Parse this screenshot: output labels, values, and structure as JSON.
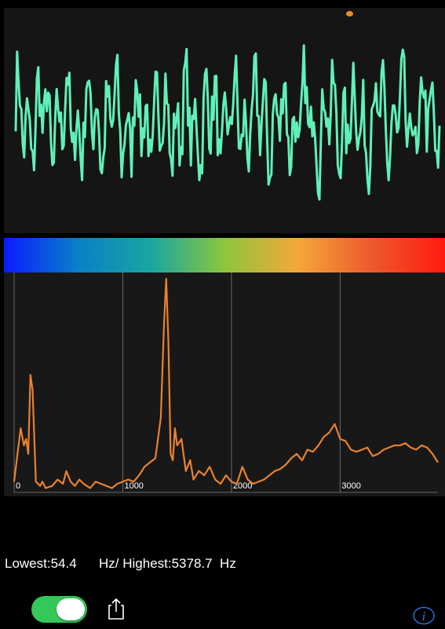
{
  "colors": {
    "waveform": "#5ff0b8",
    "spectrum": "#e8822e",
    "record_dot": "#f08a22",
    "toggle_on": "#34c759",
    "info": "#2a6fdb",
    "gradient": [
      "#0a1cff",
      "#0a7fc8",
      "#19a6a0",
      "#8cc63c",
      "#f5a73a",
      "#ec5a2c",
      "#ff1a10"
    ]
  },
  "chart_data": {
    "type": "line",
    "x_ticks": [
      "0",
      "1000",
      "2000",
      "3000"
    ],
    "xlim": [
      0,
      3900
    ],
    "grid": "vertical",
    "series": [
      {
        "x": [
          0,
          60,
          90,
          110,
          130,
          150,
          170,
          200,
          240,
          260,
          290,
          350,
          400,
          450,
          480,
          520,
          560,
          600,
          640,
          700,
          750,
          800,
          850,
          900,
          950,
          1000,
          1050,
          1100,
          1150,
          1200,
          1250,
          1300,
          1350,
          1380,
          1400,
          1420,
          1440,
          1460,
          1480,
          1500,
          1540,
          1580,
          1620,
          1650,
          1700,
          1750,
          1800,
          1850,
          1900,
          1950,
          2000,
          2050,
          2100,
          2150,
          2200,
          2250,
          2300,
          2350,
          2400,
          2450,
          2500,
          2550,
          2600,
          2650,
          2700,
          2750,
          2800,
          2850,
          2900,
          2950,
          3000,
          3050,
          3100,
          3150,
          3200,
          3250,
          3300,
          3350,
          3400,
          3450,
          3500,
          3550,
          3600,
          3650,
          3700,
          3750,
          3800,
          3850,
          3900
        ],
        "y": [
          0.05,
          0.3,
          0.22,
          0.25,
          0.18,
          0.55,
          0.48,
          0.05,
          0.03,
          0.05,
          0.02,
          0.03,
          0.06,
          0.04,
          0.1,
          0.05,
          0.03,
          0.06,
          0.04,
          0.02,
          0.05,
          0.04,
          0.03,
          0.02,
          0.04,
          0.05,
          0.06,
          0.05,
          0.08,
          0.12,
          0.14,
          0.16,
          0.35,
          0.8,
          1.0,
          0.7,
          0.18,
          0.15,
          0.3,
          0.22,
          0.25,
          0.1,
          0.15,
          0.06,
          0.1,
          0.08,
          0.12,
          0.06,
          0.04,
          0.08,
          0.05,
          0.04,
          0.12,
          0.06,
          0.04,
          0.05,
          0.06,
          0.08,
          0.1,
          0.11,
          0.13,
          0.16,
          0.18,
          0.15,
          0.2,
          0.19,
          0.22,
          0.26,
          0.28,
          0.32,
          0.25,
          0.24,
          0.2,
          0.19,
          0.2,
          0.21,
          0.17,
          0.18,
          0.2,
          0.21,
          0.22,
          0.22,
          0.23,
          0.21,
          0.2,
          0.22,
          0.21,
          0.18,
          0.14
        ]
      }
    ]
  },
  "readout": {
    "text": "Lowest:54.4      Hz/ Highest:5378.7  Hz"
  },
  "controls": {
    "toggle_on": true,
    "info_glyph": "i"
  }
}
